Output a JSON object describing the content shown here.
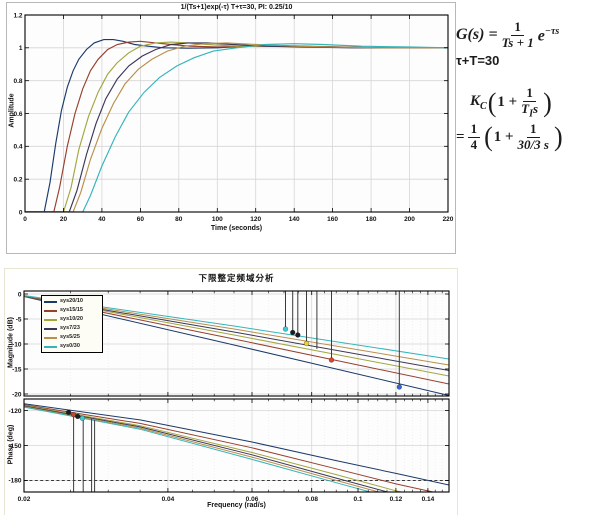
{
  "figures": {
    "step": {
      "title": "1/(Ts+1)exp(-τ)  T+τ=30,  PI: 0.25/10",
      "xlabel": "Time (seconds)",
      "ylabel": "Amplitude"
    },
    "bode": {
      "title": "下限整定频域分析",
      "xlabel": "Frequency (rad/s)",
      "mag_ylabel": "Magnitude (dB)",
      "phase_ylabel": "Phase (deg)"
    }
  },
  "equations": {
    "g_lhs": "G(s) =",
    "g_num": "1",
    "g_den": "Ts + 1",
    "g_exp_base": "e",
    "g_exp_sup": "−τs",
    "constraint": "τ+T=30",
    "kc_base": "K",
    "kc_sub": "C",
    "one_plus": "1 +",
    "ti_num": "1",
    "ti_den_base": "T",
    "ti_den_sub": "I",
    "ti_den_post": "s",
    "eq_sign": "=",
    "quarter_num": "1",
    "quarter_den": "4",
    "tune_num": "1",
    "tune_den": "30/3 s",
    "lparen": "(",
    "rparen": ")"
  },
  "chart_data": [
    {
      "type": "line",
      "title": "1/(Ts+1)exp(-τ)  T+τ=30,  PI: 0.25/10",
      "xlabel": "Time (seconds)",
      "ylabel": "Amplitude",
      "xlim": [
        0,
        220
      ],
      "ylim_top": 1.2,
      "ylim_bottom": 0,
      "xticks": [
        0,
        20,
        40,
        60,
        80,
        100,
        120,
        140,
        160,
        180,
        200,
        220
      ],
      "yticks": [
        0,
        0.2,
        0.4,
        0.6,
        0.8,
        1,
        1.2
      ],
      "grid": true,
      "series": [
        {
          "name": "sys20/10",
          "color": "#1b3a6b",
          "points": [
            [
              0,
              0
            ],
            [
              10,
              0
            ],
            [
              13,
              0.18
            ],
            [
              16,
              0.42
            ],
            [
              19,
              0.62
            ],
            [
              22,
              0.76
            ],
            [
              25,
              0.86
            ],
            [
              28,
              0.93
            ],
            [
              32,
              0.99
            ],
            [
              36,
              1.03
            ],
            [
              41,
              1.05
            ],
            [
              46,
              1.05
            ],
            [
              51,
              1.04
            ],
            [
              57,
              1.02
            ],
            [
              64,
              1.01
            ],
            [
              72,
              1.0
            ],
            [
              85,
              0.998
            ],
            [
              100,
              1.0
            ],
            [
              115,
              1.01
            ],
            [
              130,
              1.015
            ],
            [
              145,
              1.01
            ],
            [
              165,
              1.005
            ],
            [
              185,
              1.0
            ],
            [
              220,
              1.0
            ]
          ]
        },
        {
          "name": "sys15/15",
          "color": "#96402e",
          "points": [
            [
              0,
              0
            ],
            [
              15,
              0
            ],
            [
              18,
              0.15
            ],
            [
              22,
              0.4
            ],
            [
              26,
              0.6
            ],
            [
              30,
              0.75
            ],
            [
              34,
              0.86
            ],
            [
              38,
              0.93
            ],
            [
              43,
              0.99
            ],
            [
              48,
              1.02
            ],
            [
              54,
              1.035
            ],
            [
              60,
              1.04
            ],
            [
              68,
              1.03
            ],
            [
              76,
              1.02
            ],
            [
              86,
              1.01
            ],
            [
              100,
              1.005
            ],
            [
              120,
              1.01
            ],
            [
              140,
              1.01
            ],
            [
              160,
              1.005
            ],
            [
              190,
              1.0
            ],
            [
              220,
              1.0
            ]
          ]
        },
        {
          "name": "sys10/20",
          "color": "#a3a63e",
          "points": [
            [
              0,
              0
            ],
            [
              20,
              0
            ],
            [
              24,
              0.15
            ],
            [
              28,
              0.38
            ],
            [
              33,
              0.58
            ],
            [
              38,
              0.73
            ],
            [
              43,
              0.84
            ],
            [
              48,
              0.91
            ],
            [
              54,
              0.97
            ],
            [
              60,
              1.01
            ],
            [
              68,
              1.03
            ],
            [
              76,
              1.035
            ],
            [
              85,
              1.03
            ],
            [
              95,
              1.02
            ],
            [
              110,
              1.01
            ],
            [
              130,
              1.01
            ],
            [
              150,
              1.005
            ],
            [
              175,
              1.0
            ],
            [
              200,
              1.0
            ],
            [
              220,
              1.0
            ]
          ]
        },
        {
          "name": "sys7/23",
          "color": "#3a3656",
          "points": [
            [
              0,
              0
            ],
            [
              23,
              0
            ],
            [
              27,
              0.13
            ],
            [
              32,
              0.35
            ],
            [
              37,
              0.54
            ],
            [
              42,
              0.69
            ],
            [
              48,
              0.81
            ],
            [
              54,
              0.89
            ],
            [
              61,
              0.95
            ],
            [
              68,
              0.99
            ],
            [
              76,
              1.02
            ],
            [
              85,
              1.03
            ],
            [
              95,
              1.03
            ],
            [
              108,
              1.02
            ],
            [
              125,
              1.01
            ],
            [
              145,
              1.005
            ],
            [
              170,
              1.0
            ],
            [
              200,
              1.0
            ],
            [
              220,
              1.0
            ]
          ]
        },
        {
          "name": "sys5/25",
          "color": "#b98f4a",
          "points": [
            [
              0,
              0
            ],
            [
              25,
              0
            ],
            [
              29,
              0.12
            ],
            [
              34,
              0.32
            ],
            [
              40,
              0.51
            ],
            [
              46,
              0.66
            ],
            [
              52,
              0.78
            ],
            [
              59,
              0.87
            ],
            [
              66,
              0.93
            ],
            [
              74,
              0.98
            ],
            [
              83,
              1.01
            ],
            [
              93,
              1.025
            ],
            [
              105,
              1.03
            ],
            [
              120,
              1.02
            ],
            [
              140,
              1.01
            ],
            [
              160,
              1.005
            ],
            [
              185,
              1.0
            ],
            [
              220,
              1.0
            ]
          ]
        },
        {
          "name": "sys0/30",
          "color": "#35b5ba",
          "points": [
            [
              0,
              0
            ],
            [
              30,
              0
            ],
            [
              34,
              0.1
            ],
            [
              40,
              0.28
            ],
            [
              47,
              0.46
            ],
            [
              54,
              0.61
            ],
            [
              62,
              0.73
            ],
            [
              70,
              0.82
            ],
            [
              79,
              0.89
            ],
            [
              88,
              0.94
            ],
            [
              98,
              0.98
            ],
            [
              110,
              1.0
            ],
            [
              125,
              1.02
            ],
            [
              140,
              1.025
            ],
            [
              155,
              1.02
            ],
            [
              175,
              1.01
            ],
            [
              200,
              1.005
            ],
            [
              220,
              1.0
            ]
          ]
        }
      ]
    },
    {
      "type": "line",
      "subplot": "magnitude",
      "title": "下限整定频域分析",
      "ylabel": "Magnitude (dB)",
      "xlim": [
        0.02,
        0.155
      ],
      "log_x": true,
      "ylim_top": 0.6,
      "ylim_bottom": -20.4,
      "xticks": [
        0.02,
        0.04,
        0.06,
        0.08,
        0.1,
        0.12,
        0.14
      ],
      "minor_xticks": [
        0.025,
        0.03,
        0.035,
        0.045,
        0.05,
        0.055,
        0.065,
        0.07,
        0.075,
        0.085,
        0.09,
        0.095,
        0.105,
        0.11,
        0.115,
        0.125,
        0.13,
        0.135,
        0.145,
        0.15
      ],
      "yticks": [
        0,
        -5,
        -10,
        -15,
        -20
      ],
      "grid": true,
      "legend_position": "upper-left",
      "series": [
        {
          "name": "sys20/10",
          "color": "#1b3a6b",
          "points": [
            [
              0.02,
              -0.5
            ],
            [
              0.055,
              -10.2
            ],
            [
              0.155,
              -20.3
            ]
          ]
        },
        {
          "name": "sys15/15",
          "color": "#96402e",
          "points": [
            [
              0.02,
              -0.45
            ],
            [
              0.055,
              -9.0
            ],
            [
              0.155,
              -18.0
            ]
          ]
        },
        {
          "name": "sys10/20",
          "color": "#a3a63e",
          "points": [
            [
              0.02,
              -0.4
            ],
            [
              0.055,
              -8.2
            ],
            [
              0.155,
              -16.4
            ]
          ]
        },
        {
          "name": "sys7/23",
          "color": "#3a3656",
          "points": [
            [
              0.02,
              -0.4
            ],
            [
              0.055,
              -7.6
            ],
            [
              0.155,
              -15.3
            ]
          ]
        },
        {
          "name": "sys5/25",
          "color": "#b98f4a",
          "points": [
            [
              0.02,
              -0.35
            ],
            [
              0.055,
              -7.0
            ],
            [
              0.155,
              -14.2
            ]
          ]
        },
        {
          "name": "sys0/30",
          "color": "#35b5ba",
          "points": [
            [
              0.02,
              -0.3
            ],
            [
              0.055,
              -6.4
            ],
            [
              0.155,
              -13.0
            ]
          ]
        }
      ],
      "stems": [
        {
          "x": 0.0705,
          "y": -7.0
        },
        {
          "x": 0.073,
          "y": -7.7
        },
        {
          "x": 0.0748,
          "y": -8.2
        },
        {
          "x": 0.078,
          "y": -9.9
        },
        {
          "x": 0.082,
          "y": -11.0
        },
        {
          "x": 0.088,
          "y": -13.2
        },
        {
          "x": 0.122,
          "y": -18.6
        }
      ],
      "markers": [
        {
          "x": 0.0705,
          "y": -7.0,
          "color": "#3ecdd4"
        },
        {
          "x": 0.073,
          "y": -7.7,
          "color": "#1c1c24"
        },
        {
          "x": 0.0748,
          "y": -8.2,
          "color": "#1c1c24"
        },
        {
          "x": 0.078,
          "y": -9.9,
          "color": "#e8d22f"
        },
        {
          "x": 0.088,
          "y": -13.2,
          "color": "#da452f"
        },
        {
          "x": 0.122,
          "y": -18.6,
          "color": "#3566d6"
        }
      ]
    },
    {
      "type": "line",
      "subplot": "phase",
      "ylabel": "Phase (deg)",
      "xlabel": "Frequency (rad/s)",
      "xlim": [
        0.02,
        0.155
      ],
      "log_x": true,
      "ylim_top": -110,
      "ylim_bottom": -190,
      "xticks": [
        0.02,
        0.04,
        0.06,
        0.08,
        0.1,
        0.12,
        0.14
      ],
      "minor_xticks": [
        0.025,
        0.03,
        0.035,
        0.045,
        0.05,
        0.055,
        0.065,
        0.07,
        0.075,
        0.085,
        0.09,
        0.095,
        0.105,
        0.11,
        0.115,
        0.125,
        0.13,
        0.135,
        0.145,
        0.15
      ],
      "yticks": [
        -120,
        -150,
        -180
      ],
      "dashed_hline": -180,
      "grid": true,
      "series": [
        {
          "name": "sys20/10",
          "color": "#1b3a6b",
          "points": [
            [
              0.02,
              -114
            ],
            [
              0.035,
              -128
            ],
            [
              0.06,
              -147
            ],
            [
              0.09,
              -163
            ],
            [
              0.12,
              -174
            ],
            [
              0.155,
              -184
            ]
          ]
        },
        {
          "name": "sys15/15",
          "color": "#96402e",
          "points": [
            [
              0.02,
              -115
            ],
            [
              0.035,
              -131
            ],
            [
              0.06,
              -152
            ],
            [
              0.09,
              -170
            ],
            [
              0.12,
              -183
            ],
            [
              0.155,
              -193
            ]
          ]
        },
        {
          "name": "sys10/20",
          "color": "#a3a63e",
          "points": [
            [
              0.02,
              -115.5
            ],
            [
              0.035,
              -133
            ],
            [
              0.06,
              -156
            ],
            [
              0.09,
              -175
            ],
            [
              0.12,
              -189
            ],
            [
              0.155,
              -199
            ]
          ]
        },
        {
          "name": "sys7/23",
          "color": "#3a3656",
          "points": [
            [
              0.02,
              -116
            ],
            [
              0.035,
              -134
            ],
            [
              0.06,
              -158
            ],
            [
              0.09,
              -178
            ],
            [
              0.12,
              -192
            ],
            [
              0.155,
              -202
            ]
          ]
        },
        {
          "name": "sys5/25",
          "color": "#b98f4a",
          "points": [
            [
              0.02,
              -116.5
            ],
            [
              0.035,
              -135
            ],
            [
              0.06,
              -160
            ],
            [
              0.09,
              -180
            ],
            [
              0.12,
              -194
            ],
            [
              0.155,
              -204
            ]
          ]
        },
        {
          "name": "sys0/30",
          "color": "#35b5ba",
          "points": [
            [
              0.02,
              -117
            ],
            [
              0.035,
              -136
            ],
            [
              0.06,
              -162
            ],
            [
              0.09,
              -182
            ],
            [
              0.12,
              -196
            ],
            [
              0.155,
              -206
            ]
          ]
        }
      ],
      "stems": [
        {
          "x": 0.0254,
          "y": -124
        },
        {
          "x": 0.0266,
          "y": -126
        },
        {
          "x": 0.0277,
          "y": -127
        },
        {
          "x": 0.0281,
          "y": -128
        }
      ],
      "markers": [
        {
          "x": 0.0248,
          "y": -121.5,
          "color": "#1c1c24"
        },
        {
          "x": 0.0254,
          "y": -123.5,
          "color": "#c24a2a"
        },
        {
          "x": 0.0259,
          "y": -125,
          "color": "#1c1c24"
        },
        {
          "x": 0.0265,
          "y": -126.5,
          "color": "#3ecdd4"
        }
      ]
    }
  ]
}
